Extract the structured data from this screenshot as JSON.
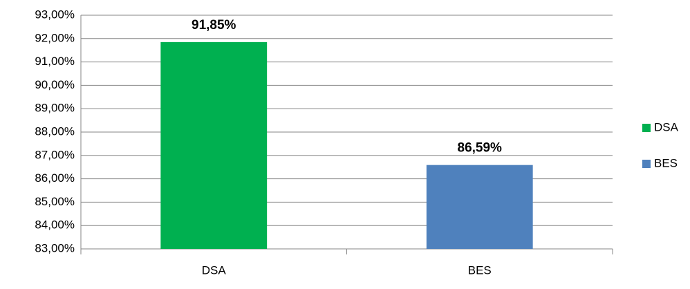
{
  "chart_data": {
    "type": "bar",
    "categories": [
      "DSA",
      "BES"
    ],
    "series": [
      {
        "name": "DSA",
        "color": "#00b050",
        "values": [
          91.85,
          null
        ],
        "value_labels": [
          "91,85%",
          null
        ]
      },
      {
        "name": "BES",
        "color": "#4f81bd",
        "values": [
          null,
          86.59
        ],
        "value_labels": [
          null,
          "86,59%"
        ]
      }
    ],
    "ylim": [
      83,
      93
    ],
    "yticks": [
      {
        "value": 83,
        "label": "83,00%"
      },
      {
        "value": 84,
        "label": "84,00%"
      },
      {
        "value": 85,
        "label": "85,00%"
      },
      {
        "value": 86,
        "label": "86,00%"
      },
      {
        "value": 87,
        "label": "87,00%"
      },
      {
        "value": 88,
        "label": "88,00%"
      },
      {
        "value": 89,
        "label": "89,00%"
      },
      {
        "value": 90,
        "label": "90,00%"
      },
      {
        "value": 91,
        "label": "91,00%"
      },
      {
        "value": 92,
        "label": "92,00%"
      },
      {
        "value": 93,
        "label": "93,00%"
      }
    ],
    "grid": true,
    "legend": "right"
  }
}
